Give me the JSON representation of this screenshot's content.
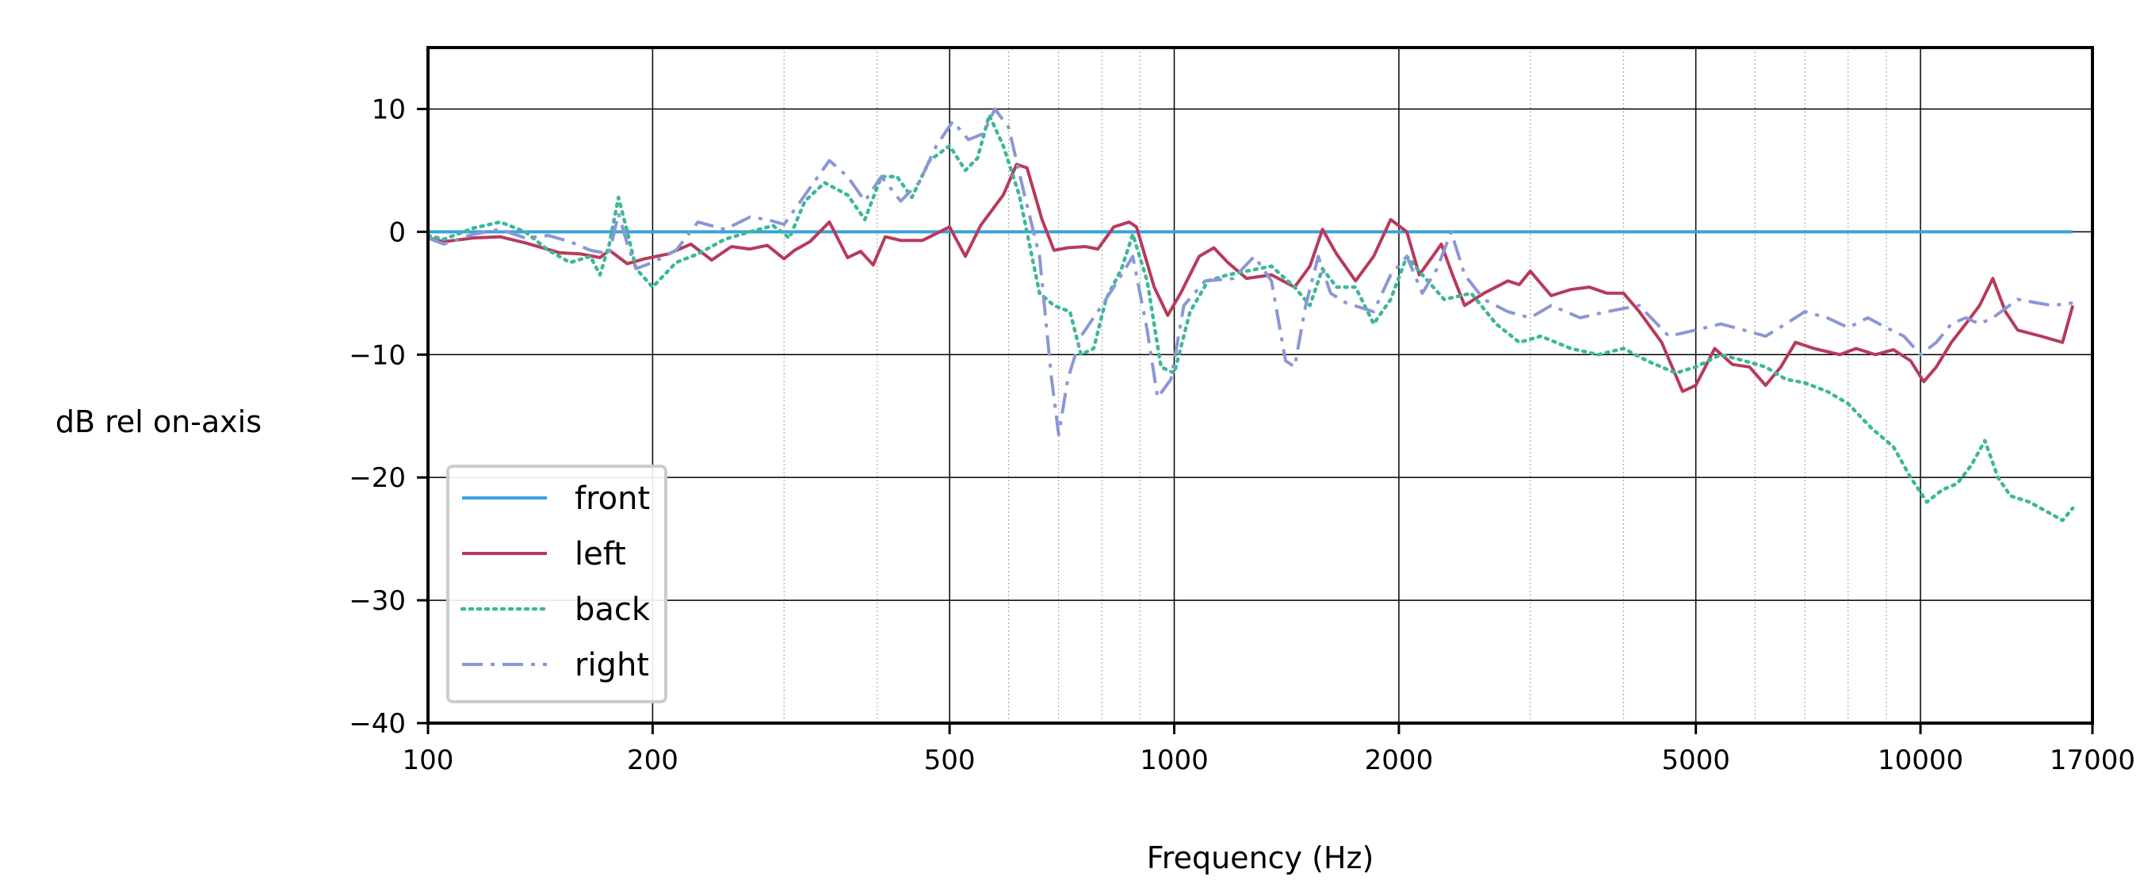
{
  "chart_data": {
    "type": "line",
    "xscale": "log",
    "xlim": [
      100,
      17000
    ],
    "ylim": [
      -40,
      15
    ],
    "xlabel": "Frequency (Hz)",
    "ylabel": "dB rel on-axis",
    "x_ticks": [
      100,
      200,
      500,
      1000,
      2000,
      5000,
      10000,
      17000
    ],
    "x_tick_labels": [
      "100",
      "200",
      "500",
      "1000",
      "2000",
      "5000",
      "10000",
      "17000"
    ],
    "y_ticks": [
      10,
      0,
      -10,
      -20,
      -30,
      -40
    ],
    "y_tick_labels": [
      "10",
      "0",
      "−10",
      "−20",
      "−30",
      "−40"
    ],
    "grid": true,
    "legend_placement": "lower-left",
    "series": [
      {
        "name": "front",
        "color": "#3aa3d8",
        "style": "solid",
        "points": [
          [
            100,
            0
          ],
          [
            16000,
            0
          ]
        ]
      },
      {
        "name": "left",
        "color": "#b83a5a",
        "style": "solid",
        "points": [
          [
            100,
            -0.5
          ],
          [
            105,
            -0.8
          ],
          [
            115,
            -0.5
          ],
          [
            125,
            -0.4
          ],
          [
            135,
            -0.9
          ],
          [
            150,
            -1.7
          ],
          [
            160,
            -1.8
          ],
          [
            170,
            -2.1
          ],
          [
            175,
            -1.5
          ],
          [
            185,
            -2.6
          ],
          [
            195,
            -2.2
          ],
          [
            210,
            -1.8
          ],
          [
            225,
            -1.0
          ],
          [
            240,
            -2.3
          ],
          [
            255,
            -1.2
          ],
          [
            270,
            -1.4
          ],
          [
            285,
            -1.1
          ],
          [
            300,
            -2.2
          ],
          [
            310,
            -1.5
          ],
          [
            325,
            -0.8
          ],
          [
            345,
            0.8
          ],
          [
            365,
            -2.1
          ],
          [
            380,
            -1.6
          ],
          [
            395,
            -2.7
          ],
          [
            410,
            -0.4
          ],
          [
            430,
            -0.7
          ],
          [
            460,
            -0.7
          ],
          [
            500,
            0.4
          ],
          [
            525,
            -2.0
          ],
          [
            550,
            0.5
          ],
          [
            590,
            3.0
          ],
          [
            615,
            5.5
          ],
          [
            635,
            5.2
          ],
          [
            665,
            1.0
          ],
          [
            690,
            -1.5
          ],
          [
            720,
            -1.3
          ],
          [
            760,
            -1.2
          ],
          [
            790,
            -1.4
          ],
          [
            830,
            0.4
          ],
          [
            870,
            0.8
          ],
          [
            890,
            0.4
          ],
          [
            940,
            -4.5
          ],
          [
            980,
            -6.8
          ],
          [
            1020,
            -5.0
          ],
          [
            1080,
            -2.0
          ],
          [
            1130,
            -1.3
          ],
          [
            1180,
            -2.5
          ],
          [
            1250,
            -3.8
          ],
          [
            1350,
            -3.5
          ],
          [
            1450,
            -4.5
          ],
          [
            1520,
            -2.8
          ],
          [
            1580,
            0.2
          ],
          [
            1650,
            -1.8
          ],
          [
            1750,
            -4.0
          ],
          [
            1850,
            -2.0
          ],
          [
            1950,
            1.0
          ],
          [
            2050,
            0.0
          ],
          [
            2130,
            -3.5
          ],
          [
            2220,
            -2.0
          ],
          [
            2280,
            -1.0
          ],
          [
            2360,
            -3.5
          ],
          [
            2450,
            -6.0
          ],
          [
            2600,
            -5.0
          ],
          [
            2800,
            -4.0
          ],
          [
            2900,
            -4.3
          ],
          [
            3000,
            -3.2
          ],
          [
            3200,
            -5.2
          ],
          [
            3400,
            -4.7
          ],
          [
            3600,
            -4.5
          ],
          [
            3800,
            -5.0
          ],
          [
            4000,
            -5.0
          ],
          [
            4200,
            -6.5
          ],
          [
            4500,
            -9.0
          ],
          [
            4800,
            -13.0
          ],
          [
            5000,
            -12.5
          ],
          [
            5300,
            -9.5
          ],
          [
            5600,
            -10.8
          ],
          [
            5900,
            -11.0
          ],
          [
            6200,
            -12.5
          ],
          [
            6500,
            -11.0
          ],
          [
            6800,
            -9.0
          ],
          [
            7200,
            -9.5
          ],
          [
            7800,
            -10.0
          ],
          [
            8200,
            -9.5
          ],
          [
            8700,
            -10.0
          ],
          [
            9200,
            -9.6
          ],
          [
            9700,
            -10.5
          ],
          [
            10100,
            -12.2
          ],
          [
            10500,
            -11.0
          ],
          [
            11000,
            -9.0
          ],
          [
            11500,
            -7.5
          ],
          [
            12000,
            -6.0
          ],
          [
            12500,
            -3.8
          ],
          [
            13000,
            -6.5
          ],
          [
            13500,
            -8.0
          ],
          [
            14500,
            -8.5
          ],
          [
            15500,
            -9.0
          ],
          [
            16000,
            -6.0
          ]
        ]
      },
      {
        "name": "back",
        "color": "#3cb89a",
        "style": "dotted",
        "points": [
          [
            100,
            -0.3
          ],
          [
            105,
            -0.6
          ],
          [
            115,
            0.3
          ],
          [
            125,
            0.8
          ],
          [
            135,
            0.0
          ],
          [
            145,
            -1.5
          ],
          [
            155,
            -2.5
          ],
          [
            165,
            -2.0
          ],
          [
            170,
            -3.5
          ],
          [
            175,
            -1.0
          ],
          [
            180,
            2.8
          ],
          [
            185,
            0.0
          ],
          [
            190,
            -3.0
          ],
          [
            200,
            -4.5
          ],
          [
            215,
            -2.5
          ],
          [
            230,
            -1.8
          ],
          [
            250,
            -0.6
          ],
          [
            270,
            0.0
          ],
          [
            290,
            0.5
          ],
          [
            305,
            -0.5
          ],
          [
            320,
            2.5
          ],
          [
            340,
            4.0
          ],
          [
            365,
            3.0
          ],
          [
            385,
            1.0
          ],
          [
            405,
            4.5
          ],
          [
            425,
            4.5
          ],
          [
            445,
            2.8
          ],
          [
            470,
            5.8
          ],
          [
            500,
            7.0
          ],
          [
            525,
            5.0
          ],
          [
            545,
            6.0
          ],
          [
            565,
            9.5
          ],
          [
            590,
            7.0
          ],
          [
            620,
            3.0
          ],
          [
            660,
            -5.0
          ],
          [
            690,
            -6.0
          ],
          [
            725,
            -6.5
          ],
          [
            750,
            -10.0
          ],
          [
            780,
            -9.5
          ],
          [
            810,
            -5.5
          ],
          [
            850,
            -3.0
          ],
          [
            880,
            -0.2
          ],
          [
            920,
            -4.0
          ],
          [
            960,
            -11.0
          ],
          [
            1000,
            -11.5
          ],
          [
            1050,
            -6.5
          ],
          [
            1110,
            -4.0
          ],
          [
            1180,
            -3.5
          ],
          [
            1250,
            -3.2
          ],
          [
            1350,
            -2.8
          ],
          [
            1450,
            -4.5
          ],
          [
            1520,
            -6.0
          ],
          [
            1580,
            -3.0
          ],
          [
            1650,
            -4.5
          ],
          [
            1750,
            -4.5
          ],
          [
            1850,
            -7.5
          ],
          [
            1950,
            -5.5
          ],
          [
            2050,
            -2.0
          ],
          [
            2150,
            -3.5
          ],
          [
            2300,
            -5.5
          ],
          [
            2500,
            -5.0
          ],
          [
            2700,
            -7.5
          ],
          [
            2900,
            -9.0
          ],
          [
            3100,
            -8.5
          ],
          [
            3400,
            -9.5
          ],
          [
            3700,
            -10.0
          ],
          [
            4000,
            -9.5
          ],
          [
            4300,
            -10.5
          ],
          [
            4700,
            -11.5
          ],
          [
            5000,
            -11.0
          ],
          [
            5400,
            -10.0
          ],
          [
            5800,
            -10.5
          ],
          [
            6200,
            -11.0
          ],
          [
            6600,
            -12.0
          ],
          [
            7000,
            -12.3
          ],
          [
            7500,
            -13.0
          ],
          [
            8000,
            -14.0
          ],
          [
            8600,
            -16.0
          ],
          [
            9200,
            -17.5
          ],
          [
            9700,
            -20.0
          ],
          [
            10200,
            -22.0
          ],
          [
            10700,
            -21.0
          ],
          [
            11200,
            -20.5
          ],
          [
            11700,
            -19.0
          ],
          [
            12200,
            -17.0
          ],
          [
            12700,
            -20.0
          ],
          [
            13200,
            -21.5
          ],
          [
            14000,
            -22.0
          ],
          [
            15000,
            -23.0
          ],
          [
            15500,
            -23.5
          ],
          [
            16000,
            -22.5
          ]
        ]
      },
      {
        "name": "right",
        "color": "#8b97d4",
        "style": "dashdot",
        "points": [
          [
            100,
            -0.5
          ],
          [
            105,
            -1.0
          ],
          [
            115,
            -0.2
          ],
          [
            125,
            0.2
          ],
          [
            135,
            -0.5
          ],
          [
            145,
            -0.3
          ],
          [
            155,
            -0.8
          ],
          [
            165,
            -1.5
          ],
          [
            175,
            -1.8
          ],
          [
            180,
            1.5
          ],
          [
            185,
            -1.0
          ],
          [
            190,
            -3.0
          ],
          [
            200,
            -2.5
          ],
          [
            215,
            -1.5
          ],
          [
            230,
            0.8
          ],
          [
            250,
            0.2
          ],
          [
            270,
            1.2
          ],
          [
            285,
            1.0
          ],
          [
            300,
            0.6
          ],
          [
            320,
            3.0
          ],
          [
            345,
            5.8
          ],
          [
            365,
            4.5
          ],
          [
            385,
            2.5
          ],
          [
            405,
            4.5
          ],
          [
            430,
            2.5
          ],
          [
            455,
            4.0
          ],
          [
            480,
            7.0
          ],
          [
            505,
            9.0
          ],
          [
            530,
            7.5
          ],
          [
            555,
            8.0
          ],
          [
            575,
            10.0
          ],
          [
            600,
            8.5
          ],
          [
            630,
            3.0
          ],
          [
            660,
            -2.0
          ],
          [
            685,
            -12.0
          ],
          [
            700,
            -16.5
          ],
          [
            720,
            -12.0
          ],
          [
            750,
            -8.5
          ],
          [
            800,
            -6.0
          ],
          [
            850,
            -3.5
          ],
          [
            880,
            -2.0
          ],
          [
            920,
            -8.0
          ],
          [
            950,
            -13.5
          ],
          [
            990,
            -12.0
          ],
          [
            1030,
            -6.0
          ],
          [
            1100,
            -4.0
          ],
          [
            1200,
            -3.8
          ],
          [
            1280,
            -2.0
          ],
          [
            1350,
            -4.0
          ],
          [
            1410,
            -10.5
          ],
          [
            1450,
            -11.0
          ],
          [
            1500,
            -6.0
          ],
          [
            1560,
            -2.0
          ],
          [
            1620,
            -5.0
          ],
          [
            1700,
            -5.8
          ],
          [
            1850,
            -6.5
          ],
          [
            1950,
            -3.5
          ],
          [
            2050,
            -2.0
          ],
          [
            2150,
            -5.0
          ],
          [
            2250,
            -3.0
          ],
          [
            2350,
            0.0
          ],
          [
            2450,
            -3.5
          ],
          [
            2600,
            -5.5
          ],
          [
            2800,
            -6.5
          ],
          [
            3000,
            -7.0
          ],
          [
            3200,
            -6.0
          ],
          [
            3500,
            -7.0
          ],
          [
            3800,
            -6.5
          ],
          [
            4200,
            -6.0
          ],
          [
            4600,
            -8.5
          ],
          [
            5000,
            -8.0
          ],
          [
            5400,
            -7.5
          ],
          [
            5800,
            -8.0
          ],
          [
            6200,
            -8.5
          ],
          [
            6600,
            -7.5
          ],
          [
            7000,
            -6.5
          ],
          [
            7500,
            -7.0
          ],
          [
            8000,
            -7.8
          ],
          [
            8500,
            -7.0
          ],
          [
            9000,
            -7.8
          ],
          [
            9500,
            -8.5
          ],
          [
            10000,
            -10.0
          ],
          [
            10500,
            -9.0
          ],
          [
            11000,
            -7.5
          ],
          [
            11500,
            -7.0
          ],
          [
            12000,
            -7.5
          ],
          [
            12500,
            -7.0
          ],
          [
            13500,
            -5.5
          ],
          [
            15000,
            -6.0
          ],
          [
            16000,
            -5.8
          ]
        ]
      }
    ]
  }
}
